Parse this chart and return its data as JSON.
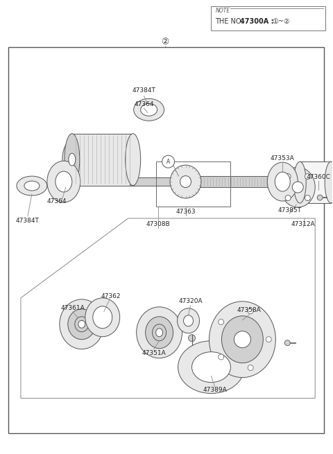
{
  "bg_color": "#ffffff",
  "note_text": "NOTE",
  "note_line2": "THE NO. 47300A :",
  "note_circled": "①~②",
  "circle_2": "②",
  "circle_A": "Ⓐ",
  "lc": "#555555",
  "lw": 0.7,
  "fig_w": 4.8,
  "fig_h": 6.55,
  "dpi": 100
}
